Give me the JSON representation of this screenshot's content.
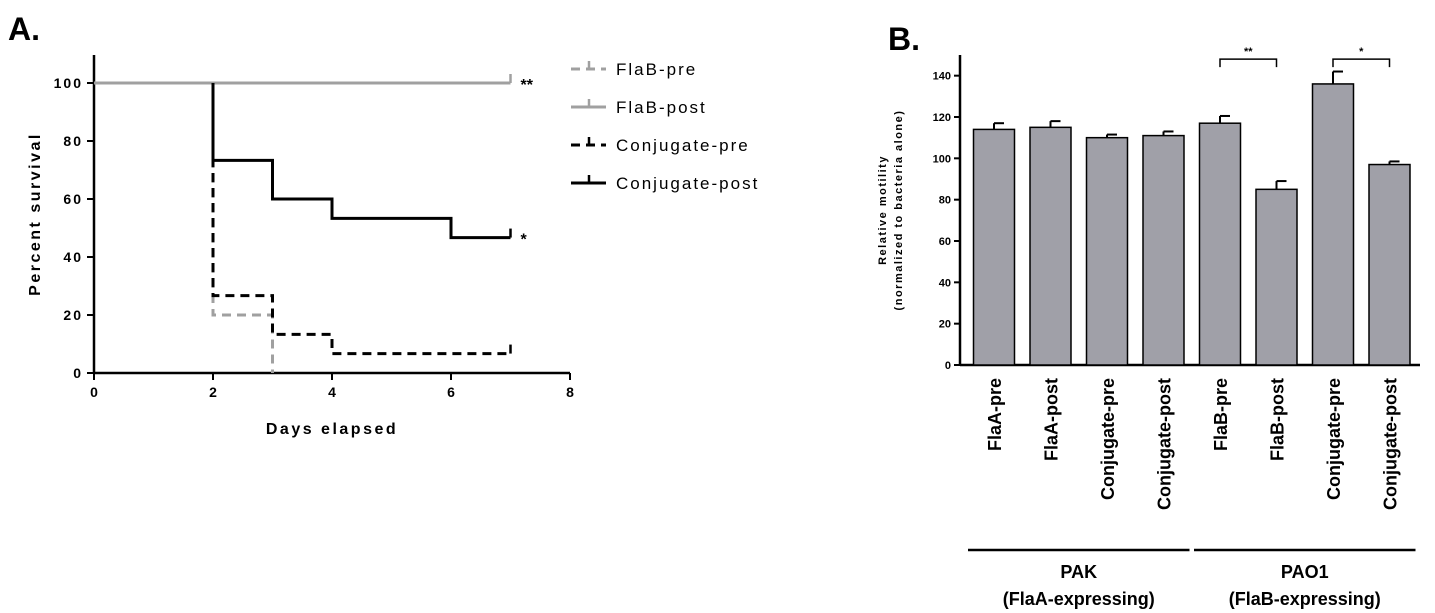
{
  "panels": {
    "a_label": "A.",
    "b_label": "B."
  },
  "chart_data": [
    {
      "type": "line",
      "panel": "A.",
      "step": true,
      "xlabel": "Days elapsed",
      "ylabel": "Percent survival",
      "xlim": [
        0,
        8
      ],
      "ylim": [
        0,
        100
      ],
      "xticks": [
        "0",
        "2",
        "4",
        "6",
        "8"
      ],
      "yticks": [
        "0",
        "20",
        "40",
        "60",
        "80",
        "100"
      ],
      "legend_position": "right",
      "series": [
        {
          "name": "FlaB-pre",
          "color": "#a0a0a0",
          "dashed": true,
          "points": [
            [
              0,
              100
            ],
            [
              2,
              100
            ],
            [
              2,
              20
            ],
            [
              3,
              20
            ],
            [
              3,
              0
            ]
          ],
          "end_tick": null,
          "sig": ""
        },
        {
          "name": "FlaB-post",
          "color": "#a0a0a0",
          "dashed": false,
          "points": [
            [
              0,
              100
            ],
            [
              7,
              100
            ]
          ],
          "end_tick": [
            7,
            100
          ],
          "sig": "**"
        },
        {
          "name": "Conjugate-pre",
          "color": "#000000",
          "dashed": true,
          "points": [
            [
              2,
              100
            ],
            [
              2,
              26.7
            ],
            [
              3,
              26.7
            ],
            [
              3,
              13.3
            ],
            [
              4,
              13.3
            ],
            [
              4,
              6.7
            ],
            [
              7,
              6.7
            ]
          ],
          "end_tick": [
            7,
            6.7
          ],
          "sig": ""
        },
        {
          "name": "Conjugate-post",
          "color": "#000000",
          "dashed": false,
          "points": [
            [
              2,
              100
            ],
            [
              2,
              73.3
            ],
            [
              3,
              73.3
            ],
            [
              3,
              60
            ],
            [
              4,
              60
            ],
            [
              4,
              53.3
            ],
            [
              6,
              53.3
            ],
            [
              6,
              46.7
            ],
            [
              7,
              46.7
            ]
          ],
          "end_tick": [
            7,
            46.7
          ],
          "sig": "*"
        }
      ]
    },
    {
      "type": "bar",
      "panel": "B.",
      "ylabel_line1": "Relative motility",
      "ylabel_line2": "(normalized to bacteria alone)",
      "ylim": [
        0,
        150
      ],
      "yticks": [
        "0",
        "20",
        "40",
        "60",
        "80",
        "100",
        "120",
        "140"
      ],
      "categories": [
        "FlaA-pre",
        "FlaA-post",
        "Conjugate-pre",
        "Conjugate-post",
        "FlaB-pre",
        "FlaB-post",
        "Conjugate-pre",
        "Conjugate-post"
      ],
      "values": [
        114,
        115,
        110,
        111,
        117,
        85,
        136,
        97
      ],
      "errors": [
        3,
        3,
        1.5,
        2,
        3.5,
        4,
        6,
        1.5
      ],
      "bar_color": "#a0a0a8",
      "groups": [
        {
          "line1": "PAK",
          "line2": "(FlaA-expressing)",
          "range": [
            0,
            3
          ]
        },
        {
          "line1": "PAO1",
          "line2": "(FlaB-expressing)",
          "range": [
            4,
            7
          ]
        }
      ],
      "significance": [
        {
          "from": 4,
          "to": 5,
          "label": "**",
          "y": 148
        },
        {
          "from": 6,
          "to": 7,
          "label": "*",
          "y": 148
        }
      ]
    }
  ]
}
